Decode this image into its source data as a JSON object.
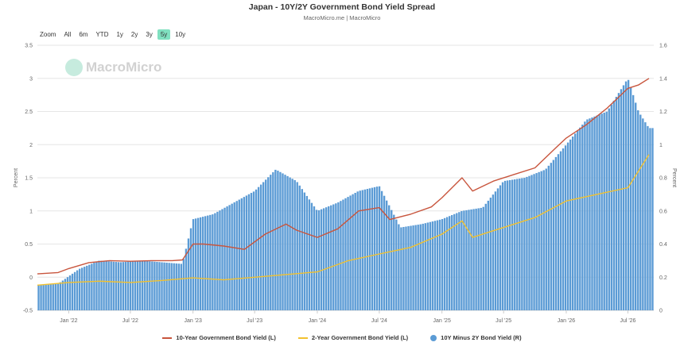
{
  "title": "Japan - 10Y/2Y Government Bond Yield Spread",
  "subtitle": "MacroMicro.me | MacroMicro",
  "watermark": "MacroMicro",
  "zoom": {
    "label": "Zoom",
    "buttons": [
      "All",
      "6m",
      "YTD",
      "1y",
      "2y",
      "3y",
      "5y",
      "10y"
    ],
    "active": "5y"
  },
  "colors": {
    "ten_year": "#c8553d",
    "two_year": "#f2c12e",
    "spread": "#5b9bd5"
  },
  "chart_data": {
    "type": "line",
    "x_ticks": [
      "Jan '22",
      "Jul '22",
      "Jan '23",
      "Jul '23",
      "Jan '24",
      "Jul '24",
      "Jan '25",
      "Jul '25",
      "Jan '26",
      "Jul '26"
    ],
    "y_left": {
      "label": "Percent",
      "min": -0.5,
      "max": 3.5,
      "ticks": [
        "-0.5",
        "0",
        "0.5",
        "1",
        "1.5",
        "2",
        "2.5",
        "3",
        "3.5"
      ]
    },
    "y_right": {
      "label": "Percent",
      "min": 0,
      "max": 1.6,
      "ticks": [
        "0",
        "0.2",
        "0.4",
        "0.6",
        "0.8",
        "1",
        "1.2",
        "1.4",
        "1.6"
      ]
    },
    "legend_position": "bottom",
    "grid": true,
    "series": [
      {
        "name": "10-Year Government Bond Yield (L)",
        "type": "line",
        "axis": "left",
        "x": [
          "2021-10",
          "2021-12",
          "2022-01",
          "2022-03",
          "2022-05",
          "2022-07",
          "2022-09",
          "2022-11",
          "2022-12",
          "2023-01",
          "2023-02",
          "2023-04",
          "2023-06",
          "2023-08",
          "2023-10",
          "2023-11",
          "2024-01",
          "2024-03",
          "2024-05",
          "2024-07",
          "2024-08",
          "2024-10",
          "2024-12",
          "2025-01",
          "2025-03",
          "2025-04",
          "2025-06",
          "2025-08",
          "2025-10",
          "2025-12",
          "2026-01",
          "2026-03",
          "2026-05",
          "2026-07",
          "2026-08",
          "2026-09"
        ],
        "values": [
          0.05,
          0.07,
          0.13,
          0.22,
          0.25,
          0.24,
          0.25,
          0.25,
          0.26,
          0.5,
          0.5,
          0.47,
          0.42,
          0.65,
          0.8,
          0.71,
          0.6,
          0.73,
          1.0,
          1.05,
          0.87,
          0.95,
          1.06,
          1.2,
          1.5,
          1.3,
          1.45,
          1.55,
          1.65,
          1.95,
          2.1,
          2.3,
          2.55,
          2.85,
          2.9,
          3.0
        ]
      },
      {
        "name": "2-Year Government Bond Yield (L)",
        "type": "line",
        "axis": "left",
        "x": [
          "2021-10",
          "2022-01",
          "2022-04",
          "2022-07",
          "2022-10",
          "2023-01",
          "2023-04",
          "2023-07",
          "2023-10",
          "2024-01",
          "2024-04",
          "2024-07",
          "2024-10",
          "2025-01",
          "2025-03",
          "2025-04",
          "2025-07",
          "2025-10",
          "2026-01",
          "2026-04",
          "2026-07",
          "2026-09"
        ],
        "values": [
          -0.12,
          -0.08,
          -0.06,
          -0.08,
          -0.05,
          -0.01,
          -0.04,
          0.0,
          0.04,
          0.08,
          0.25,
          0.35,
          0.45,
          0.65,
          0.85,
          0.6,
          0.75,
          0.9,
          1.15,
          1.25,
          1.35,
          1.85
        ]
      },
      {
        "name": "10Y Minus 2Y Bond Yield (R)",
        "type": "bar",
        "axis": "right",
        "x": [
          "2021-10",
          "2021-12",
          "2022-02",
          "2022-04",
          "2022-06",
          "2022-08",
          "2022-10",
          "2022-12",
          "2023-01",
          "2023-03",
          "2023-05",
          "2023-07",
          "2023-09",
          "2023-11",
          "2024-01",
          "2024-03",
          "2024-05",
          "2024-07",
          "2024-09",
          "2024-11",
          "2025-01",
          "2025-03",
          "2025-05",
          "2025-07",
          "2025-09",
          "2025-11",
          "2026-01",
          "2026-03",
          "2026-05",
          "2026-07",
          "2026-08",
          "2026-09"
        ],
        "values": [
          0.15,
          0.16,
          0.25,
          0.3,
          0.29,
          0.3,
          0.29,
          0.28,
          0.55,
          0.58,
          0.65,
          0.72,
          0.85,
          0.78,
          0.6,
          0.65,
          0.72,
          0.75,
          0.5,
          0.52,
          0.55,
          0.6,
          0.62,
          0.78,
          0.8,
          0.85,
          1.0,
          1.15,
          1.2,
          1.4,
          1.2,
          1.1
        ]
      }
    ]
  }
}
